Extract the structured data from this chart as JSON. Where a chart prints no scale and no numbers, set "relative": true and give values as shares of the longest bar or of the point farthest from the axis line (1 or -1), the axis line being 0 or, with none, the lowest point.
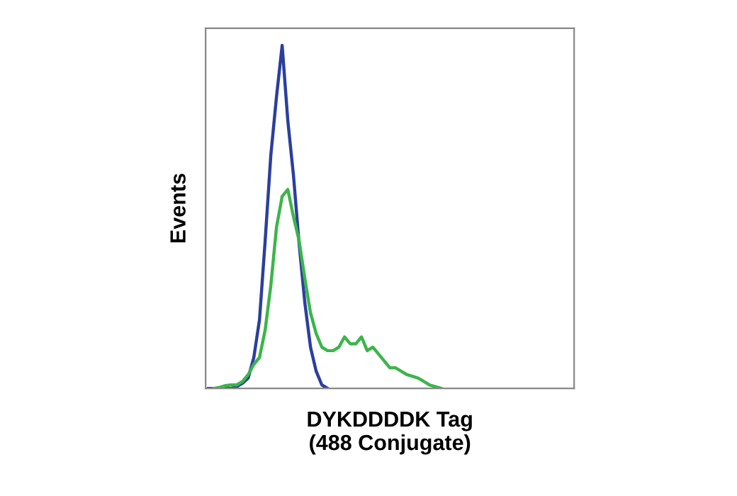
{
  "chart_data": {
    "type": "line",
    "relative": true,
    "xlabel": "DYKDDDDK Tag\n(488 Conjugate)",
    "ylabel": "Events",
    "grid": false,
    "legend": false,
    "marker": "none",
    "line_style": "solid",
    "categories": [
      null,
      null,
      null,
      null,
      null,
      null,
      null,
      null,
      null,
      null,
      null,
      null,
      null,
      null,
      null,
      null,
      null,
      null,
      null,
      null,
      null,
      null,
      null,
      null,
      null,
      null,
      null,
      null,
      null,
      null,
      null,
      null,
      null,
      null,
      null,
      null,
      null,
      null,
      null,
      null,
      null,
      null,
      null,
      null,
      null,
      null,
      null,
      null,
      null,
      null,
      null,
      null,
      null,
      null,
      null,
      null,
      null,
      null,
      null,
      null,
      null,
      null,
      null,
      null,
      null
    ],
    "series": [
      {
        "color": "#2b3f9e",
        "values": [
          0,
          0,
          0,
          0,
          0,
          0.005,
          0.015,
          0.03,
          0.09,
          0.2,
          0.43,
          0.68,
          0.85,
          1.0,
          0.78,
          0.62,
          0.42,
          0.25,
          0.12,
          0.05,
          0.01,
          0,
          null,
          null,
          null,
          null,
          null,
          null,
          null,
          null,
          null,
          null,
          null,
          null,
          null,
          null,
          null,
          null,
          null,
          null,
          null,
          null,
          null,
          null,
          null,
          null,
          null,
          null,
          null,
          null,
          null,
          null,
          null,
          null,
          null,
          null,
          null,
          null,
          null,
          null,
          null,
          null,
          null,
          null,
          null
        ]
      },
      {
        "color": "#3cb54a",
        "values": [
          null,
          0,
          0.003,
          0.008,
          0.01,
          0.01,
          0.02,
          0.04,
          0.07,
          0.09,
          0.17,
          0.3,
          0.47,
          0.56,
          0.58,
          0.5,
          0.43,
          0.32,
          0.22,
          0.16,
          0.12,
          0.11,
          0.11,
          0.12,
          0.15,
          0.13,
          0.13,
          0.15,
          0.11,
          0.12,
          0.1,
          0.08,
          0.06,
          0.06,
          0.05,
          0.04,
          0.035,
          0.03,
          0.02,
          0.01,
          0.005,
          0,
          null,
          null,
          null,
          null,
          null,
          null,
          null,
          null,
          null,
          null,
          null,
          null,
          null,
          null,
          null,
          null,
          null,
          null,
          null,
          null,
          null,
          null,
          null
        ]
      }
    ]
  }
}
